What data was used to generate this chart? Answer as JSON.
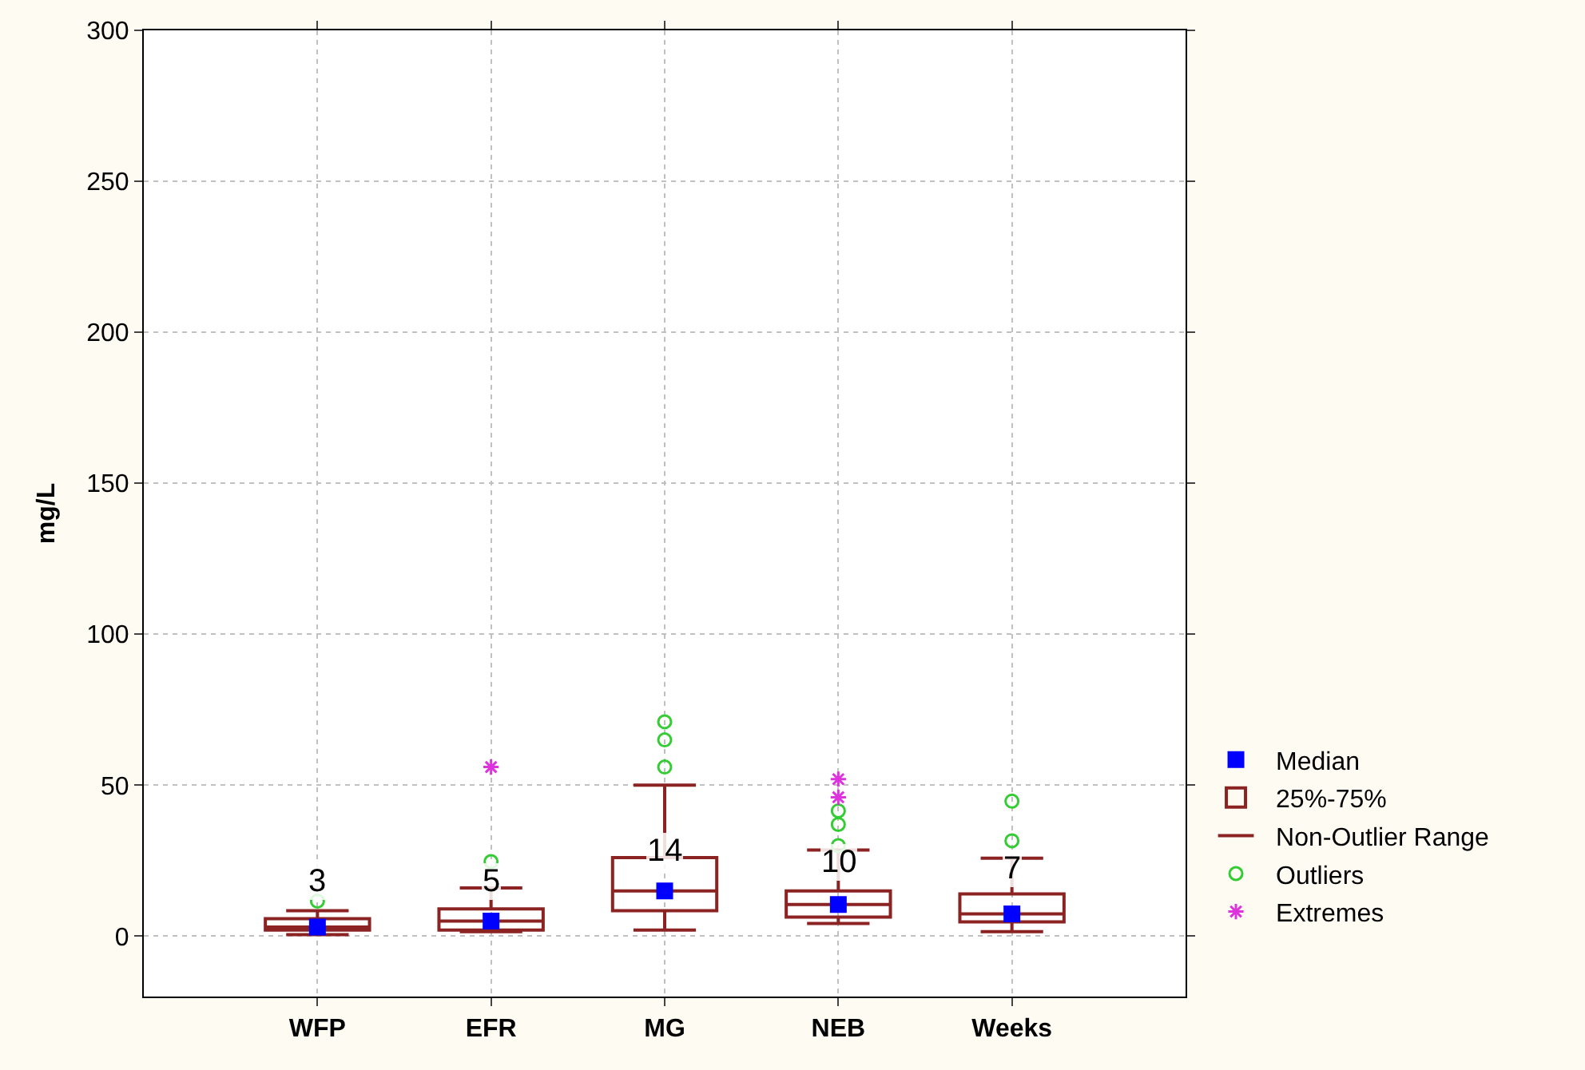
{
  "chart_data": {
    "type": "box",
    "ylabel": "mg/L",
    "categories": [
      "WFP",
      "EFR",
      "MG",
      "NEB",
      "Weeks"
    ],
    "ylim": [
      -20,
      300
    ],
    "yticks": [
      0,
      50,
      100,
      150,
      200,
      250,
      300
    ],
    "grid": true,
    "legend": "bottom right",
    "series": [
      {
        "name": "Median",
        "type": "scatter",
        "marker": "square",
        "color": "#0000ff",
        "x": [
          "WFP",
          "EFR",
          "MG",
          "NEB",
          "Weeks"
        ],
        "values": [
          3,
          5,
          15,
          10.5,
          7.4
        ]
      },
      {
        "name": "25%-75%",
        "color": "#8b2323",
        "boxes": [
          {
            "low": 0.5,
            "q1": 2,
            "median": 3,
            "q3": 5.8,
            "high": 8.4
          },
          {
            "low": 1.5,
            "q1": 2,
            "median": 5,
            "q3": 9,
            "high": 16
          },
          {
            "low": 2,
            "q1": 8.4,
            "median": 15,
            "q3": 26,
            "high": 50
          },
          {
            "low": 4.2,
            "q1": 6.3,
            "median": 10.5,
            "q3": 15,
            "high": 28.5
          },
          {
            "low": 1.5,
            "q1": 4.7,
            "median": 7.4,
            "q3": 14,
            "high": 25.8
          }
        ]
      },
      {
        "name": "Outliers",
        "type": "scatter",
        "marker": "circle",
        "color": "#33cc33",
        "x": [
          "WFP",
          "EFR",
          "MG",
          "MG",
          "MG",
          "NEB",
          "NEB",
          "NEB",
          "Weeks",
          "Weeks"
        ],
        "values": [
          11.6,
          24.7,
          56,
          65,
          71,
          30,
          37,
          41.5,
          31.6,
          44.7
        ]
      },
      {
        "name": "Extremes",
        "type": "scatter",
        "marker": "cross",
        "color": "#dd33dd",
        "x": [
          "EFR",
          "NEB",
          "NEB"
        ],
        "values": [
          56,
          46,
          52
        ]
      }
    ],
    "annotations": [
      {
        "text": "3",
        "x": "WFP",
        "y": 15
      },
      {
        "text": "5",
        "x": "EFR",
        "y": 15
      },
      {
        "text": "14",
        "x": "MG",
        "y": 25
      },
      {
        "text": "10",
        "x": "NEB",
        "y": 21.5
      },
      {
        "text": "7",
        "x": "Weeks",
        "y": 19
      },
      "Non-Outlier Range"
    ]
  }
}
